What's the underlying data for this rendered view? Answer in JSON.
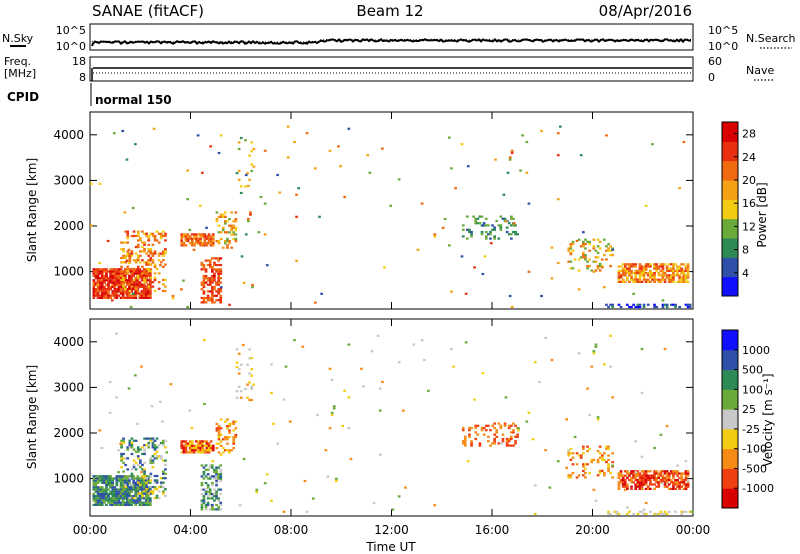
{
  "header": {
    "station": "SANAE (fitACF)",
    "beam": "Beam 12",
    "date": "08/Apr/2016"
  },
  "noise_panel": {
    "left_label": "N.Sky",
    "right_label": "N.Search",
    "left_ticks": [
      "10^5",
      "10^0"
    ],
    "right_ticks": [
      "10^5",
      "10^0"
    ]
  },
  "freq_panel": {
    "left_label_top": "Freq.",
    "left_label_bottom": "[MHz]",
    "right_label": "Nave",
    "left_ticks": [
      "18",
      "8"
    ],
    "right_ticks": [
      "60",
      "0"
    ]
  },
  "cpid_panel": {
    "label": "CPID",
    "mode_text": "normal 150"
  },
  "colors": {
    "power": [
      "#1010ff",
      "#2e50a8",
      "#2e8a55",
      "#6aaa3a",
      "#f2cc10",
      "#f5a015",
      "#f06a10",
      "#e83010",
      "#d80000"
    ],
    "velocity": [
      "#d80000",
      "#f04010",
      "#f58a15",
      "#f2cc10",
      "#c8c8c8",
      "#6aaa3a",
      "#2e8a55",
      "#2e50a8",
      "#1010ff"
    ]
  },
  "chart_data": [
    {
      "type": "heatmap",
      "name": "power",
      "ylabel": "Slant Range [km]",
      "y_ticks": [
        1000,
        2000,
        3000,
        4000
      ],
      "ylim": [
        180,
        4500
      ],
      "xlim": [
        0,
        24
      ],
      "x_tick_labels": [
        "00:00",
        "04:00",
        "08:00",
        "12:00",
        "16:00",
        "20:00",
        "00:00"
      ],
      "colorbar": {
        "label": "Power [dB]",
        "ticks": [
          "4",
          "8",
          "12",
          "16",
          "20",
          "24",
          "28"
        ],
        "range": [
          0,
          30
        ]
      },
      "regions": [
        {
          "t": [
            0.1,
            2.4
          ],
          "r": [
            400,
            1050
          ],
          "value": [
            22,
            30
          ],
          "density": 0.85
        },
        {
          "t": [
            1.2,
            3.0
          ],
          "r": [
            550,
            1900
          ],
          "value": [
            14,
            26
          ],
          "density": 0.3
        },
        {
          "t": [
            3.6,
            4.9
          ],
          "r": [
            1550,
            1800
          ],
          "value": [
            18,
            26
          ],
          "density": 0.8
        },
        {
          "t": [
            4.4,
            5.2
          ],
          "r": [
            300,
            1300
          ],
          "value": [
            20,
            28
          ],
          "density": 0.55
        },
        {
          "t": [
            5.0,
            5.8
          ],
          "r": [
            1500,
            2300
          ],
          "value": [
            12,
            24
          ],
          "density": 0.35
        },
        {
          "t": [
            5.8,
            6.5
          ],
          "r": [
            2700,
            4000
          ],
          "value": [
            8,
            20
          ],
          "density": 0.1
        },
        {
          "t": [
            14.8,
            17.0
          ],
          "r": [
            1700,
            2200
          ],
          "value": [
            4,
            14
          ],
          "density": 0.25
        },
        {
          "t": [
            19.0,
            20.8
          ],
          "r": [
            1000,
            1700
          ],
          "value": [
            10,
            22
          ],
          "density": 0.2
        },
        {
          "t": [
            21.0,
            23.8
          ],
          "r": [
            750,
            1150
          ],
          "value": [
            14,
            26
          ],
          "density": 0.7
        },
        {
          "t": [
            20.5,
            23.9
          ],
          "r": [
            200,
            280
          ],
          "value": [
            2,
            8
          ],
          "density": 0.35
        },
        {
          "t": [
            0.0,
            24.0
          ],
          "r": [
            200,
            4200
          ],
          "value": [
            4,
            26
          ],
          "density": 0.006
        }
      ]
    },
    {
      "type": "heatmap",
      "name": "velocity",
      "ylabel": "Slant Range [km]",
      "y_ticks": [
        1000,
        2000,
        3000,
        4000
      ],
      "ylim": [
        180,
        4500
      ],
      "xlim": [
        0,
        24
      ],
      "x_tick_labels": [
        "00:00",
        "04:00",
        "08:00",
        "12:00",
        "16:00",
        "20:00",
        "00:00"
      ],
      "xlabel": "Time UT",
      "colorbar": {
        "label": "Velocity [m s⁻¹]",
        "ticks": [
          "-1000",
          "-500",
          "-100",
          "-25",
          "25",
          "100",
          "500",
          "1000"
        ]
      },
      "regions": [
        {
          "t": [
            0.1,
            2.4
          ],
          "r": [
            400,
            1050
          ],
          "value": [
            5,
            8
          ],
          "density": 0.85
        },
        {
          "t": [
            1.2,
            3.0
          ],
          "r": [
            550,
            1900
          ],
          "value": [
            3,
            8
          ],
          "density": 0.3
        },
        {
          "t": [
            3.6,
            4.9
          ],
          "r": [
            1550,
            1800
          ],
          "value": [
            0,
            4
          ],
          "density": 0.8
        },
        {
          "t": [
            4.4,
            5.2
          ],
          "r": [
            300,
            1300
          ],
          "value": [
            4,
            8
          ],
          "density": 0.55
        },
        {
          "t": [
            5.0,
            5.8
          ],
          "r": [
            1500,
            2300
          ],
          "value": [
            1,
            4
          ],
          "density": 0.35
        },
        {
          "t": [
            5.8,
            6.5
          ],
          "r": [
            2700,
            4000
          ],
          "value": [
            2,
            5
          ],
          "density": 0.1
        },
        {
          "t": [
            14.8,
            17.0
          ],
          "r": [
            1700,
            2200
          ],
          "value": [
            1,
            3
          ],
          "density": 0.25
        },
        {
          "t": [
            19.0,
            20.8
          ],
          "r": [
            1000,
            1700
          ],
          "value": [
            1,
            4
          ],
          "density": 0.2
        },
        {
          "t": [
            21.0,
            23.8
          ],
          "r": [
            750,
            1150
          ],
          "value": [
            0,
            3
          ],
          "density": 0.7
        },
        {
          "t": [
            20.5,
            23.9
          ],
          "r": [
            200,
            280
          ],
          "value": [
            3,
            5
          ],
          "density": 0.35
        },
        {
          "t": [
            0.0,
            24.0
          ],
          "r": [
            200,
            4200
          ],
          "value": [
            2,
            6
          ],
          "density": 0.006
        }
      ]
    }
  ]
}
